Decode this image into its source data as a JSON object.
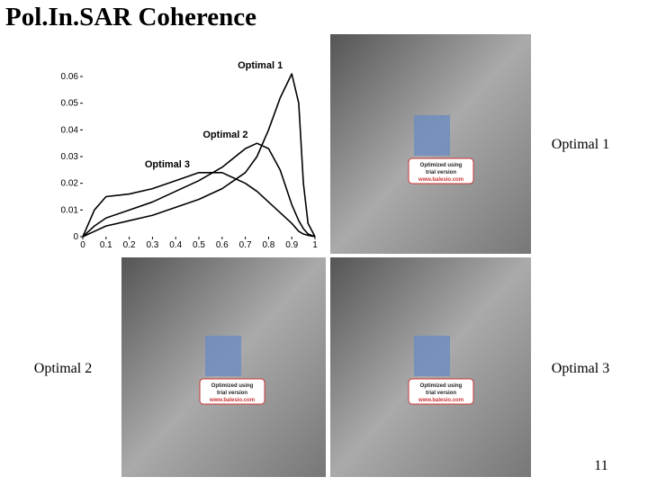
{
  "slide": {
    "title": "Pol.In.SAR Coherence",
    "captions": [
      "Optimal 1",
      "Optimal 2",
      "Optimal 3"
    ],
    "page_number": "11",
    "watermark": [
      "Optimized using",
      "trial version",
      "www.balesio.com"
    ]
  },
  "chart_data": {
    "type": "line",
    "x": [
      0,
      0.05,
      0.1,
      0.2,
      0.3,
      0.4,
      0.5,
      0.6,
      0.7,
      0.75,
      0.8,
      0.85,
      0.9,
      0.93,
      0.95,
      0.97,
      1
    ],
    "series": [
      {
        "name": "Optimal 1",
        "color": "#000000",
        "values": [
          0,
          0.002,
          0.004,
          0.006,
          0.008,
          0.011,
          0.014,
          0.018,
          0.024,
          0.03,
          0.04,
          0.052,
          0.061,
          0.05,
          0.02,
          0.005,
          0
        ]
      },
      {
        "name": "Optimal 2",
        "color": "#000000",
        "values": [
          0,
          0.004,
          0.007,
          0.01,
          0.013,
          0.017,
          0.021,
          0.026,
          0.033,
          0.035,
          0.033,
          0.025,
          0.012,
          0.006,
          0.003,
          0.001,
          0
        ]
      },
      {
        "name": "Optimal 3",
        "color": "#000000",
        "values": [
          0,
          0.01,
          0.015,
          0.016,
          0.018,
          0.021,
          0.024,
          0.024,
          0.02,
          0.017,
          0.013,
          0.009,
          0.005,
          0.002,
          0.001,
          0.0005,
          0
        ]
      }
    ],
    "xlim": [
      0,
      1
    ],
    "xticks": [
      0,
      0.1,
      0.2,
      0.3,
      0.4,
      0.5,
      0.6,
      0.7,
      0.8,
      0.9,
      1
    ],
    "ylim": [
      0,
      0.06
    ],
    "yticks": [
      0,
      0.01,
      0.02,
      0.03,
      0.04,
      0.05,
      0.06
    ]
  }
}
